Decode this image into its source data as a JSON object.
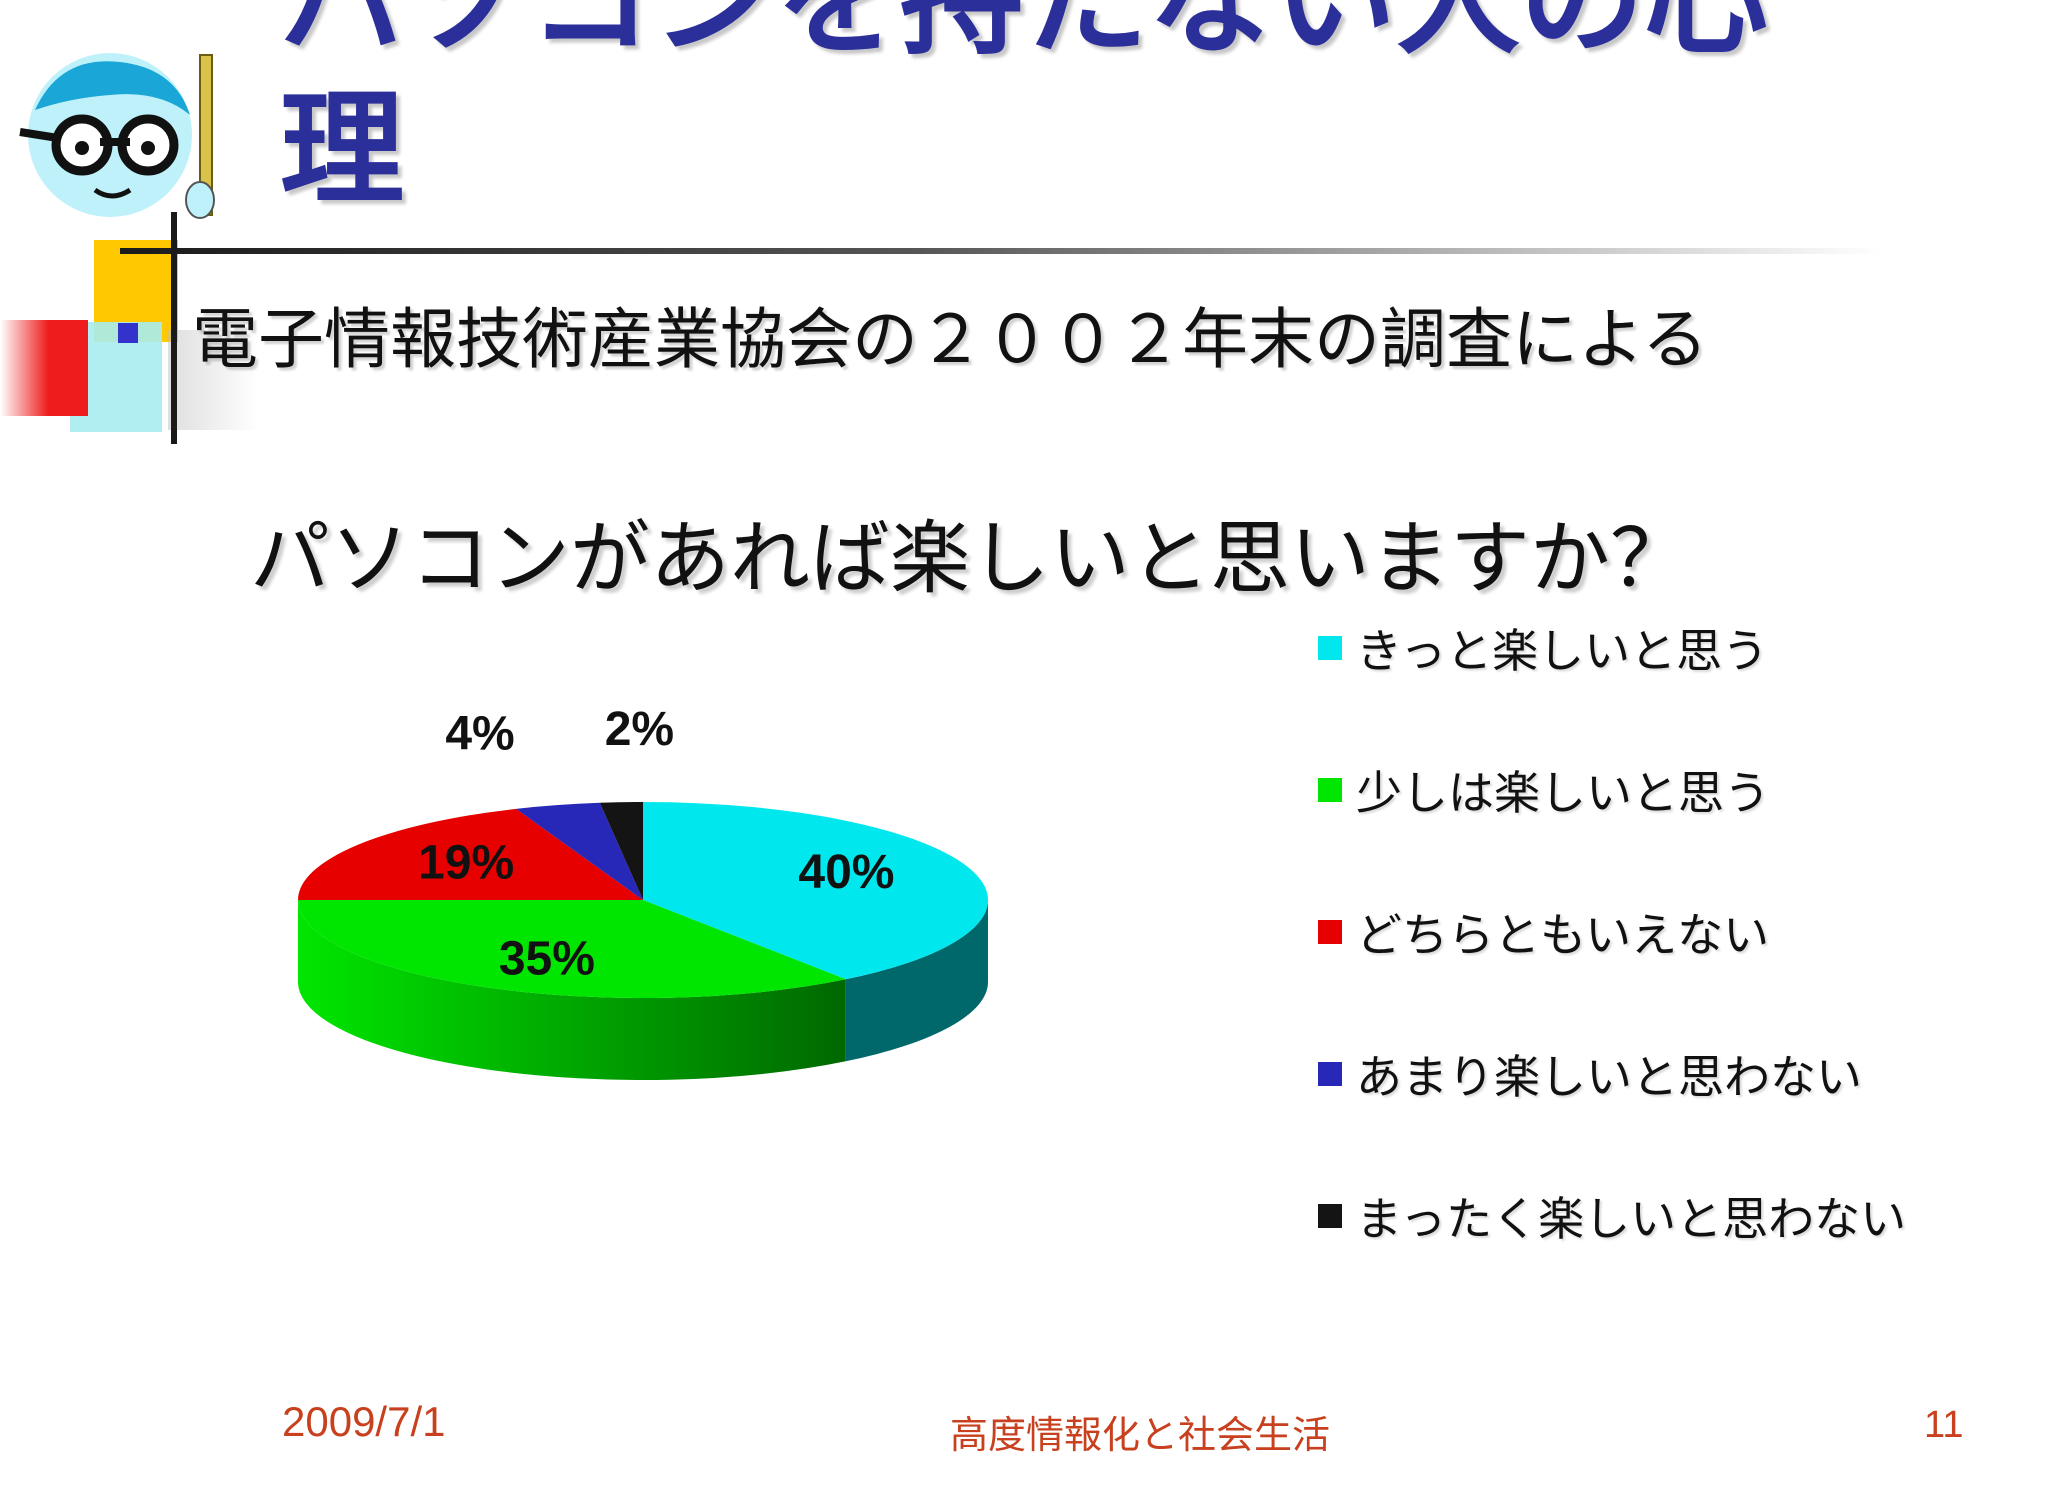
{
  "slide": {
    "title_line1": "パソコンを持たない人の心",
    "title_line2": "理",
    "bullet": "電子情報技術産業協会の２００２年末の調査による",
    "question": "パソコンがあれば楽しいと思いますか？"
  },
  "footer": {
    "date": "2009/7/1",
    "center": "高度情報化と社会生活",
    "page": "11"
  },
  "chart_data": {
    "type": "pie",
    "title": "",
    "categories": [
      "きっと楽しいと思う",
      "少しは楽しいと思う",
      "どちらともいえない",
      "あまり楽しいと思わない",
      "まったく楽しいと思わない"
    ],
    "values": [
      40,
      35,
      19,
      4,
      2
    ],
    "labels": [
      "40%",
      "35%",
      "19%",
      "4%",
      "2%"
    ],
    "colors": [
      "#00e8ee",
      "#00e600",
      "#e60000",
      "#2828b8",
      "#141414"
    ],
    "legend_position": "right"
  }
}
